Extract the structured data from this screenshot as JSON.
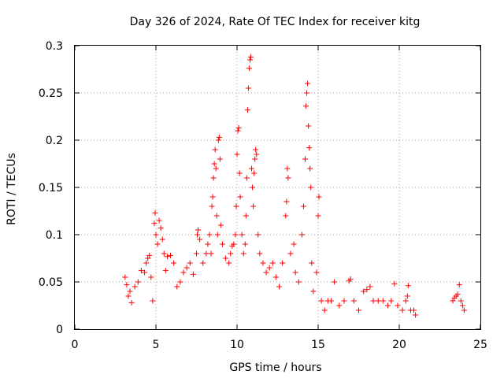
{
  "chart_data": {
    "type": "scatter",
    "title": "Day 326 of 2024, Rate Of TEC Index for receiver kitg",
    "xlabel": "GPS time / hours",
    "ylabel": "ROTI / TECUs",
    "xlim": [
      0,
      25
    ],
    "ylim": [
      0,
      0.3
    ],
    "xticks": [
      0,
      5,
      10,
      15,
      20,
      25
    ],
    "xtick_labels": [
      "0",
      "5",
      "10",
      "15",
      "20",
      "25"
    ],
    "yticks": [
      0,
      0.05,
      0.1,
      0.15,
      0.2,
      0.25,
      0.3
    ],
    "ytick_labels": [
      "0",
      "0.05",
      "0.1",
      "0.15",
      "0.2",
      "0.25",
      "0.3"
    ],
    "grid": true,
    "marker": "+",
    "color": "#ff0000",
    "series": [
      {
        "name": "ROTI",
        "points": [
          [
            3.1,
            0.055
          ],
          [
            3.2,
            0.047
          ],
          [
            3.3,
            0.035
          ],
          [
            3.4,
            0.04
          ],
          [
            3.5,
            0.028
          ],
          [
            3.7,
            0.045
          ],
          [
            3.9,
            0.05
          ],
          [
            4.1,
            0.062
          ],
          [
            4.3,
            0.06
          ],
          [
            4.4,
            0.07
          ],
          [
            4.5,
            0.075
          ],
          [
            4.6,
            0.078
          ],
          [
            4.7,
            0.055
          ],
          [
            4.8,
            0.03
          ],
          [
            4.9,
            0.112
          ],
          [
            4.95,
            0.123
          ],
          [
            5.0,
            0.1
          ],
          [
            5.1,
            0.09
          ],
          [
            5.2,
            0.115
          ],
          [
            5.3,
            0.107
          ],
          [
            5.4,
            0.095
          ],
          [
            5.5,
            0.08
          ],
          [
            5.6,
            0.062
          ],
          [
            5.7,
            0.077
          ],
          [
            5.9,
            0.078
          ],
          [
            6.1,
            0.07
          ],
          [
            6.3,
            0.045
          ],
          [
            6.5,
            0.05
          ],
          [
            6.7,
            0.06
          ],
          [
            6.9,
            0.065
          ],
          [
            7.1,
            0.07
          ],
          [
            7.3,
            0.058
          ],
          [
            7.5,
            0.08
          ],
          [
            7.55,
            0.1
          ],
          [
            7.6,
            0.105
          ],
          [
            7.7,
            0.095
          ],
          [
            7.9,
            0.07
          ],
          [
            8.1,
            0.08
          ],
          [
            8.2,
            0.09
          ],
          [
            8.3,
            0.1
          ],
          [
            8.4,
            0.08
          ],
          [
            8.45,
            0.13
          ],
          [
            8.5,
            0.14
          ],
          [
            8.55,
            0.16
          ],
          [
            8.6,
            0.175
          ],
          [
            8.65,
            0.19
          ],
          [
            8.7,
            0.17
          ],
          [
            8.75,
            0.12
          ],
          [
            8.8,
            0.1
          ],
          [
            8.85,
            0.2
          ],
          [
            8.9,
            0.203
          ],
          [
            8.95,
            0.18
          ],
          [
            9.0,
            0.11
          ],
          [
            9.1,
            0.09
          ],
          [
            9.3,
            0.075
          ],
          [
            9.5,
            0.07
          ],
          [
            9.6,
            0.08
          ],
          [
            9.7,
            0.088
          ],
          [
            9.8,
            0.09
          ],
          [
            9.9,
            0.1
          ],
          [
            9.95,
            0.13
          ],
          [
            10.0,
            0.185
          ],
          [
            10.05,
            0.21
          ],
          [
            10.1,
            0.213
          ],
          [
            10.15,
            0.165
          ],
          [
            10.2,
            0.14
          ],
          [
            10.3,
            0.1
          ],
          [
            10.4,
            0.08
          ],
          [
            10.5,
            0.09
          ],
          [
            10.55,
            0.12
          ],
          [
            10.6,
            0.16
          ],
          [
            10.65,
            0.232
          ],
          [
            10.7,
            0.255
          ],
          [
            10.75,
            0.276
          ],
          [
            10.8,
            0.285
          ],
          [
            10.85,
            0.288
          ],
          [
            10.9,
            0.17
          ],
          [
            10.95,
            0.15
          ],
          [
            11.0,
            0.13
          ],
          [
            11.05,
            0.165
          ],
          [
            11.1,
            0.18
          ],
          [
            11.15,
            0.19
          ],
          [
            11.2,
            0.185
          ],
          [
            11.3,
            0.1
          ],
          [
            11.4,
            0.08
          ],
          [
            11.6,
            0.07
          ],
          [
            11.8,
            0.06
          ],
          [
            12.0,
            0.065
          ],
          [
            12.2,
            0.07
          ],
          [
            12.4,
            0.055
          ],
          [
            12.6,
            0.045
          ],
          [
            12.8,
            0.07
          ],
          [
            13.0,
            0.12
          ],
          [
            13.05,
            0.135
          ],
          [
            13.1,
            0.17
          ],
          [
            13.15,
            0.16
          ],
          [
            13.3,
            0.08
          ],
          [
            13.5,
            0.09
          ],
          [
            13.6,
            0.06
          ],
          [
            13.8,
            0.05
          ],
          [
            14.0,
            0.1
          ],
          [
            14.1,
            0.13
          ],
          [
            14.2,
            0.18
          ],
          [
            14.25,
            0.236
          ],
          [
            14.3,
            0.25
          ],
          [
            14.35,
            0.26
          ],
          [
            14.4,
            0.215
          ],
          [
            14.45,
            0.192
          ],
          [
            14.5,
            0.17
          ],
          [
            14.55,
            0.15
          ],
          [
            14.6,
            0.07
          ],
          [
            14.7,
            0.04
          ],
          [
            14.9,
            0.06
          ],
          [
            15.0,
            0.12
          ],
          [
            15.05,
            0.14
          ],
          [
            15.2,
            0.03
          ],
          [
            15.4,
            0.02
          ],
          [
            15.6,
            0.03
          ],
          [
            15.8,
            0.03
          ],
          [
            16.0,
            0.05
          ],
          [
            16.3,
            0.025
          ],
          [
            16.6,
            0.03
          ],
          [
            16.9,
            0.051
          ],
          [
            17.0,
            0.053
          ],
          [
            17.2,
            0.03
          ],
          [
            17.5,
            0.02
          ],
          [
            17.8,
            0.04
          ],
          [
            18.0,
            0.042
          ],
          [
            18.2,
            0.045
          ],
          [
            18.4,
            0.03
          ],
          [
            18.7,
            0.03
          ],
          [
            19.0,
            0.03
          ],
          [
            19.3,
            0.025
          ],
          [
            19.5,
            0.03
          ],
          [
            19.7,
            0.048
          ],
          [
            19.9,
            0.025
          ],
          [
            20.2,
            0.02
          ],
          [
            20.4,
            0.03
          ],
          [
            20.5,
            0.035
          ],
          [
            20.55,
            0.046
          ],
          [
            20.7,
            0.02
          ],
          [
            20.9,
            0.02
          ],
          [
            21.0,
            0.015
          ],
          [
            23.3,
            0.03
          ],
          [
            23.4,
            0.033
          ],
          [
            23.5,
            0.035
          ],
          [
            23.6,
            0.037
          ],
          [
            23.7,
            0.047
          ],
          [
            23.8,
            0.03
          ],
          [
            23.9,
            0.025
          ],
          [
            24.0,
            0.02
          ]
        ]
      }
    ]
  }
}
